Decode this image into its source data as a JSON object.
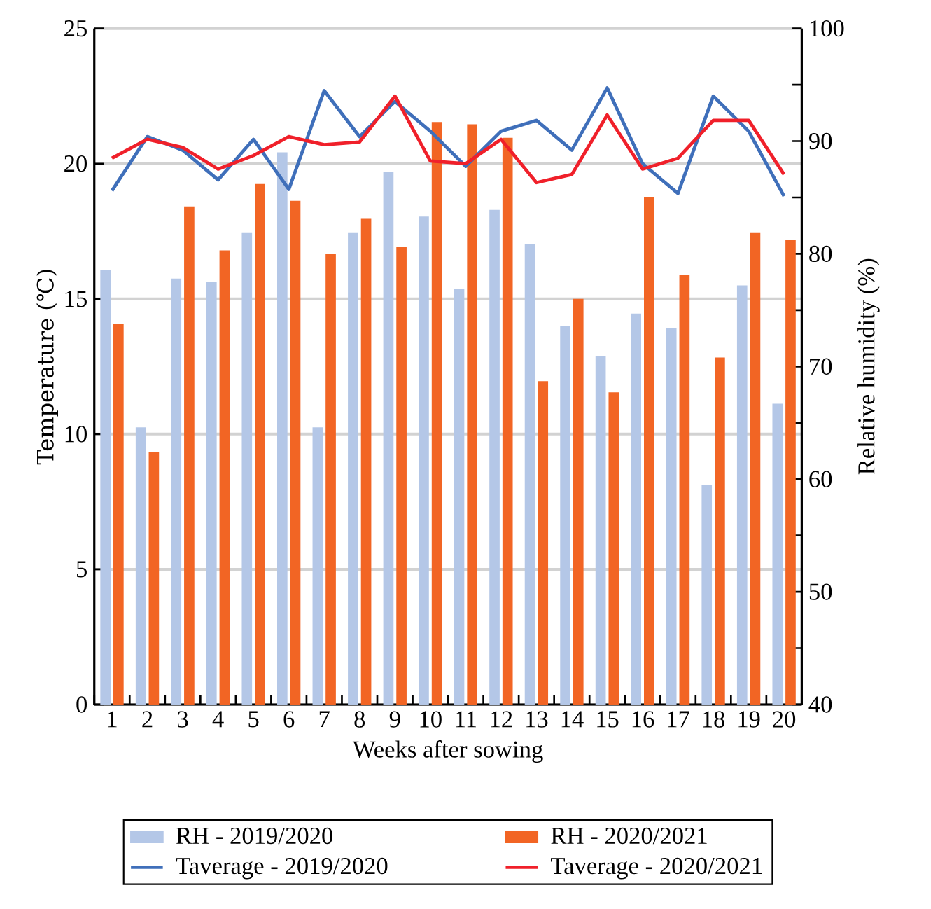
{
  "chart_data": {
    "type": "bar",
    "xlabel": "Weeks after sowing",
    "ylabel": "Temperature (℃)",
    "y2label": "Relative humidity (%)",
    "categories": [
      "1",
      "2",
      "3",
      "4",
      "5",
      "6",
      "7",
      "8",
      "9",
      "10",
      "11",
      "12",
      "13",
      "14",
      "15",
      "16",
      "17",
      "18",
      "19",
      "20"
    ],
    "series": [
      {
        "name": "RH - 2019/2020",
        "axis": "y2",
        "color": "#b4c7e7",
        "values": [
          78.6,
          64.6,
          77.8,
          77.5,
          81.9,
          89.0,
          64.6,
          81.9,
          87.3,
          83.3,
          76.9,
          83.9,
          80.9,
          73.6,
          70.9,
          74.7,
          73.4,
          59.5,
          77.2,
          66.7
        ]
      },
      {
        "name": "RH - 2020/2021",
        "axis": "y2",
        "color": "#f26524",
        "values": [
          73.8,
          62.4,
          84.2,
          80.3,
          86.2,
          84.7,
          80.0,
          83.1,
          80.6,
          91.7,
          91.5,
          90.3,
          68.7,
          76.0,
          67.7,
          85.0,
          78.1,
          70.8,
          81.9,
          81.2
        ]
      },
      {
        "name": "Taverage - 2019/2020",
        "type": "line",
        "color": "#3f6fba",
        "values": [
          19.0,
          21.0,
          20.5,
          19.4,
          20.9,
          19.05,
          22.7,
          21.0,
          22.3,
          21.2,
          19.9,
          21.2,
          21.6,
          20.5,
          22.8,
          20.0,
          18.9,
          22.5,
          21.2,
          18.8
        ]
      },
      {
        "name": "Taverage - 2020/2021",
        "type": "line",
        "color": "#f0202a",
        "values": [
          20.2,
          20.9,
          20.6,
          19.8,
          20.3,
          21.0,
          20.7,
          20.8,
          22.5,
          20.1,
          20.0,
          20.9,
          19.3,
          19.6,
          21.8,
          19.8,
          20.2,
          21.6,
          21.6,
          19.6
        ]
      }
    ],
    "ylim": [
      0,
      25
    ],
    "yticks": [
      0,
      5,
      10,
      15,
      20,
      25
    ],
    "y2lim": [
      40,
      100
    ],
    "y2ticks": [
      40,
      {
        "value": 45,
        "label": null
      },
      50,
      {
        "value": 55,
        "label": null
      },
      60,
      {
        "value": 65,
        "label": null
      },
      70,
      {
        "value": 75,
        "label": null
      },
      80,
      {
        "value": 85,
        "label": null
      },
      90,
      {
        "value": 95,
        "label": null
      },
      100
    ],
    "grid": "y",
    "legend": "bottom"
  }
}
